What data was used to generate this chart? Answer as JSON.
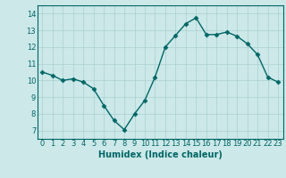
{
  "x": [
    0,
    1,
    2,
    3,
    4,
    5,
    6,
    7,
    8,
    9,
    10,
    11,
    12,
    13,
    14,
    15,
    16,
    17,
    18,
    19,
    20,
    21,
    22,
    23
  ],
  "y": [
    10.5,
    10.3,
    10.0,
    10.1,
    9.9,
    9.5,
    8.5,
    7.6,
    7.05,
    8.0,
    8.8,
    10.2,
    12.0,
    12.7,
    13.4,
    13.75,
    12.75,
    12.75,
    12.9,
    12.65,
    12.2,
    11.55,
    10.2,
    9.9
  ],
  "xlabel": "Humidex (Indice chaleur)",
  "xlim": [
    -0.5,
    23.5
  ],
  "ylim": [
    6.5,
    14.5
  ],
  "yticks": [
    7,
    8,
    9,
    10,
    11,
    12,
    13,
    14
  ],
  "xticks": [
    0,
    1,
    2,
    3,
    4,
    5,
    6,
    7,
    8,
    9,
    10,
    11,
    12,
    13,
    14,
    15,
    16,
    17,
    18,
    19,
    20,
    21,
    22,
    23
  ],
  "line_color": "#006666",
  "marker": "D",
  "marker_size": 2.5,
  "bg_color": "#cce8e8",
  "grid_color": "#aad0d0",
  "axes_color": "#006666",
  "tick_fontsize": 6,
  "xlabel_fontsize": 7
}
